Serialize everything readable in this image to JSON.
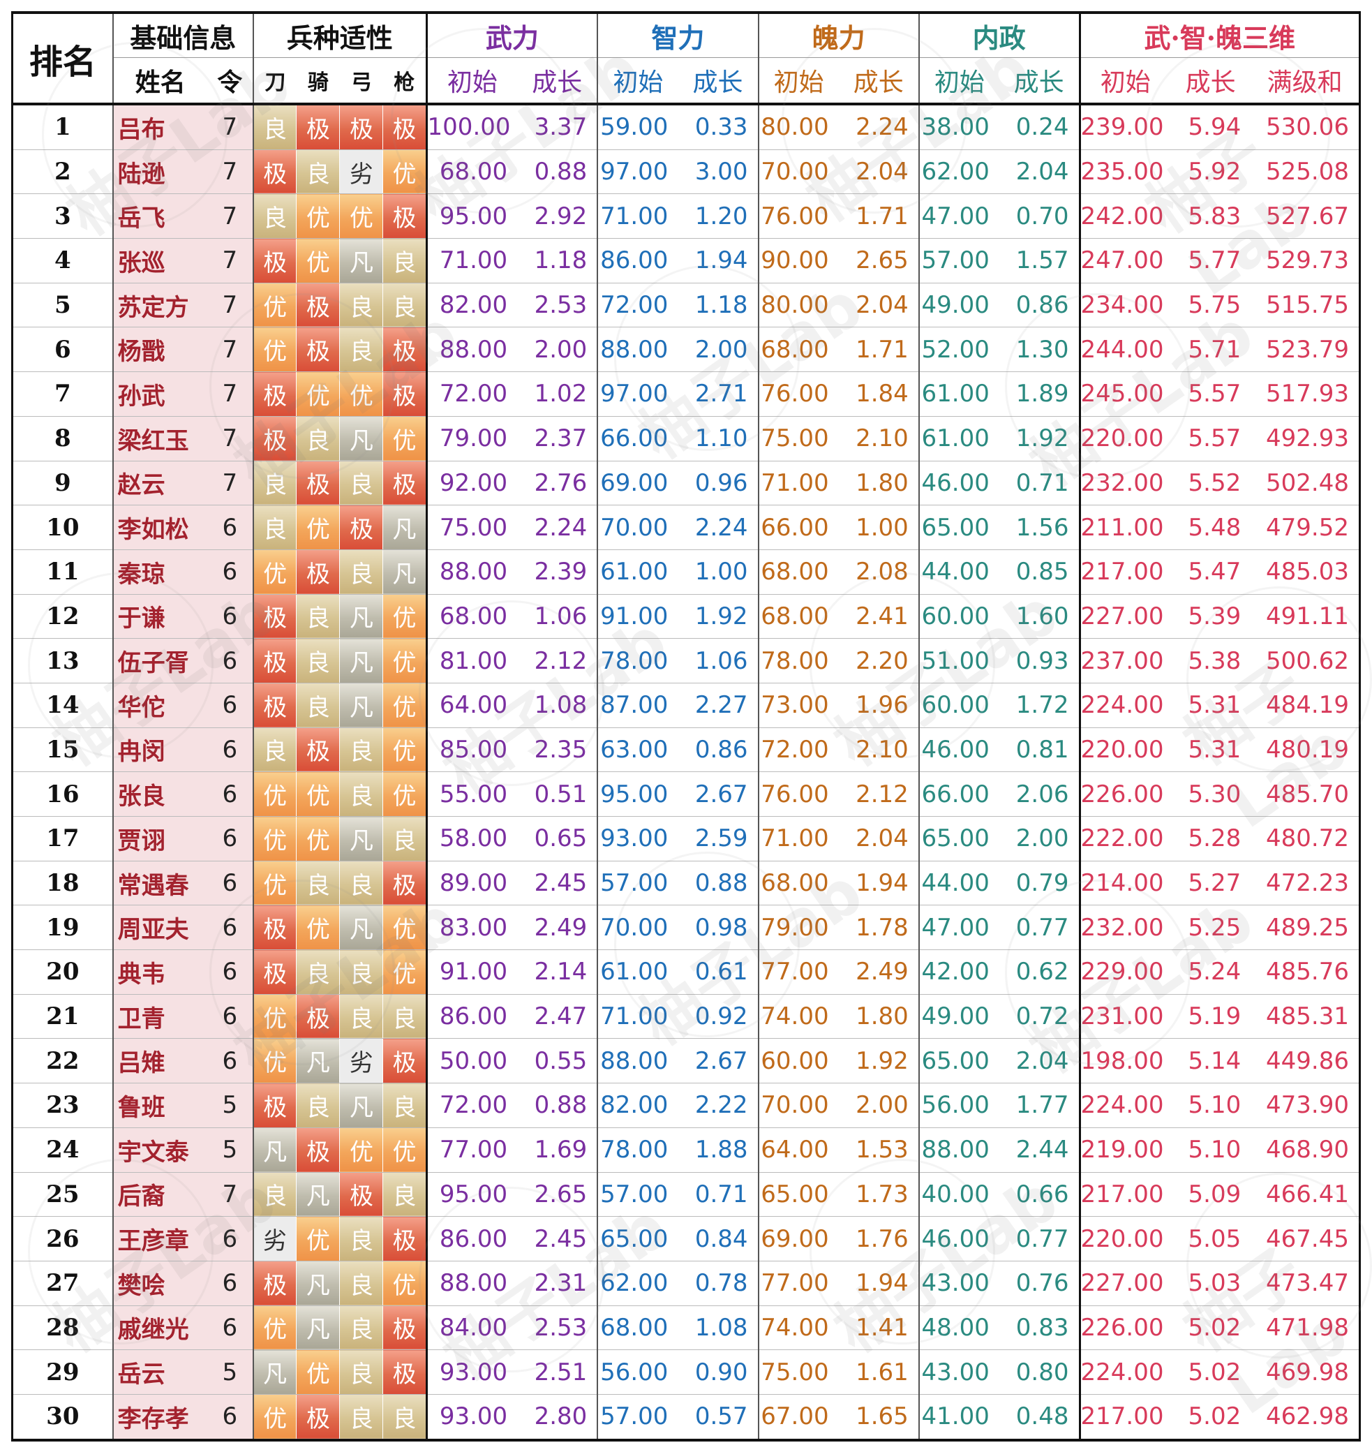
{
  "header": {
    "rank": "排名",
    "basic": "基础信息",
    "troop": "兵种适性",
    "wuli": "武力",
    "zhili": "智力",
    "poli": "魄力",
    "neizheng": "内政",
    "sanwei": "武·智·魄三维",
    "name": "姓名",
    "ling": "令",
    "dao": "刀",
    "qi": "骑",
    "gong": "弓",
    "qiang": "枪",
    "init": "初始",
    "grow": "成长",
    "maxsum": "满级和"
  },
  "watermark": "柚子Lab",
  "rows": [
    {
      "rank": "1",
      "name": "吕布",
      "ling": "7",
      "apt": [
        "良",
        "极",
        "极",
        "极"
      ],
      "w": [
        "100.00",
        "3.37"
      ],
      "z": [
        "59.00",
        "0.33"
      ],
      "p": [
        "80.00",
        "2.24"
      ],
      "n": [
        "38.00",
        "0.24"
      ],
      "s": [
        "239.00",
        "5.94",
        "530.06"
      ]
    },
    {
      "rank": "2",
      "name": "陆逊",
      "ling": "7",
      "apt": [
        "极",
        "良",
        "劣",
        "优"
      ],
      "w": [
        "68.00",
        "0.88"
      ],
      "z": [
        "97.00",
        "3.00"
      ],
      "p": [
        "70.00",
        "2.04"
      ],
      "n": [
        "62.00",
        "2.04"
      ],
      "s": [
        "235.00",
        "5.92",
        "525.08"
      ]
    },
    {
      "rank": "3",
      "name": "岳飞",
      "ling": "7",
      "apt": [
        "良",
        "优",
        "优",
        "极"
      ],
      "w": [
        "95.00",
        "2.92"
      ],
      "z": [
        "71.00",
        "1.20"
      ],
      "p": [
        "76.00",
        "1.71"
      ],
      "n": [
        "47.00",
        "0.70"
      ],
      "s": [
        "242.00",
        "5.83",
        "527.67"
      ]
    },
    {
      "rank": "4",
      "name": "张巡",
      "ling": "7",
      "apt": [
        "极",
        "优",
        "凡",
        "良"
      ],
      "w": [
        "71.00",
        "1.18"
      ],
      "z": [
        "86.00",
        "1.94"
      ],
      "p": [
        "90.00",
        "2.65"
      ],
      "n": [
        "57.00",
        "1.57"
      ],
      "s": [
        "247.00",
        "5.77",
        "529.73"
      ]
    },
    {
      "rank": "5",
      "name": "苏定方",
      "ling": "7",
      "apt": [
        "优",
        "极",
        "良",
        "良"
      ],
      "w": [
        "82.00",
        "2.53"
      ],
      "z": [
        "72.00",
        "1.18"
      ],
      "p": [
        "80.00",
        "2.04"
      ],
      "n": [
        "49.00",
        "0.86"
      ],
      "s": [
        "234.00",
        "5.75",
        "515.75"
      ]
    },
    {
      "rank": "6",
      "name": "杨戬",
      "ling": "7",
      "apt": [
        "优",
        "极",
        "良",
        "极"
      ],
      "w": [
        "88.00",
        "2.00"
      ],
      "z": [
        "88.00",
        "2.00"
      ],
      "p": [
        "68.00",
        "1.71"
      ],
      "n": [
        "52.00",
        "1.30"
      ],
      "s": [
        "244.00",
        "5.71",
        "523.79"
      ]
    },
    {
      "rank": "7",
      "name": "孙武",
      "ling": "7",
      "apt": [
        "极",
        "优",
        "优",
        "极"
      ],
      "w": [
        "72.00",
        "1.02"
      ],
      "z": [
        "97.00",
        "2.71"
      ],
      "p": [
        "76.00",
        "1.84"
      ],
      "n": [
        "61.00",
        "1.89"
      ],
      "s": [
        "245.00",
        "5.57",
        "517.93"
      ]
    },
    {
      "rank": "8",
      "name": "梁红玉",
      "ling": "7",
      "apt": [
        "极",
        "良",
        "凡",
        "优"
      ],
      "w": [
        "79.00",
        "2.37"
      ],
      "z": [
        "66.00",
        "1.10"
      ],
      "p": [
        "75.00",
        "2.10"
      ],
      "n": [
        "61.00",
        "1.92"
      ],
      "s": [
        "220.00",
        "5.57",
        "492.93"
      ]
    },
    {
      "rank": "9",
      "name": "赵云",
      "ling": "7",
      "apt": [
        "良",
        "极",
        "良",
        "极"
      ],
      "w": [
        "92.00",
        "2.76"
      ],
      "z": [
        "69.00",
        "0.96"
      ],
      "p": [
        "71.00",
        "1.80"
      ],
      "n": [
        "46.00",
        "0.71"
      ],
      "s": [
        "232.00",
        "5.52",
        "502.48"
      ]
    },
    {
      "rank": "10",
      "name": "李如松",
      "ling": "6",
      "apt": [
        "良",
        "优",
        "极",
        "凡"
      ],
      "w": [
        "75.00",
        "2.24"
      ],
      "z": [
        "70.00",
        "2.24"
      ],
      "p": [
        "66.00",
        "1.00"
      ],
      "n": [
        "65.00",
        "1.56"
      ],
      "s": [
        "211.00",
        "5.48",
        "479.52"
      ]
    },
    {
      "rank": "11",
      "name": "秦琼",
      "ling": "6",
      "apt": [
        "优",
        "极",
        "良",
        "凡"
      ],
      "w": [
        "88.00",
        "2.39"
      ],
      "z": [
        "61.00",
        "1.00"
      ],
      "p": [
        "68.00",
        "2.08"
      ],
      "n": [
        "44.00",
        "0.85"
      ],
      "s": [
        "217.00",
        "5.47",
        "485.03"
      ]
    },
    {
      "rank": "12",
      "name": "于谦",
      "ling": "6",
      "apt": [
        "极",
        "良",
        "凡",
        "优"
      ],
      "w": [
        "68.00",
        "1.06"
      ],
      "z": [
        "91.00",
        "1.92"
      ],
      "p": [
        "68.00",
        "2.41"
      ],
      "n": [
        "60.00",
        "1.60"
      ],
      "s": [
        "227.00",
        "5.39",
        "491.11"
      ]
    },
    {
      "rank": "13",
      "name": "伍子胥",
      "ling": "6",
      "apt": [
        "极",
        "良",
        "凡",
        "优"
      ],
      "w": [
        "81.00",
        "2.12"
      ],
      "z": [
        "78.00",
        "1.06"
      ],
      "p": [
        "78.00",
        "2.20"
      ],
      "n": [
        "51.00",
        "0.93"
      ],
      "s": [
        "237.00",
        "5.38",
        "500.62"
      ]
    },
    {
      "rank": "14",
      "name": "华佗",
      "ling": "6",
      "apt": [
        "极",
        "良",
        "凡",
        "优"
      ],
      "w": [
        "64.00",
        "1.08"
      ],
      "z": [
        "87.00",
        "2.27"
      ],
      "p": [
        "73.00",
        "1.96"
      ],
      "n": [
        "60.00",
        "1.72"
      ],
      "s": [
        "224.00",
        "5.31",
        "484.19"
      ]
    },
    {
      "rank": "15",
      "name": "冉闵",
      "ling": "6",
      "apt": [
        "良",
        "极",
        "良",
        "优"
      ],
      "w": [
        "85.00",
        "2.35"
      ],
      "z": [
        "63.00",
        "0.86"
      ],
      "p": [
        "72.00",
        "2.10"
      ],
      "n": [
        "46.00",
        "0.81"
      ],
      "s": [
        "220.00",
        "5.31",
        "480.19"
      ]
    },
    {
      "rank": "16",
      "name": "张良",
      "ling": "6",
      "apt": [
        "优",
        "优",
        "良",
        "优"
      ],
      "w": [
        "55.00",
        "0.51"
      ],
      "z": [
        "95.00",
        "2.67"
      ],
      "p": [
        "76.00",
        "2.12"
      ],
      "n": [
        "66.00",
        "2.06"
      ],
      "s": [
        "226.00",
        "5.30",
        "485.70"
      ]
    },
    {
      "rank": "17",
      "name": "贾诩",
      "ling": "6",
      "apt": [
        "优",
        "优",
        "凡",
        "良"
      ],
      "w": [
        "58.00",
        "0.65"
      ],
      "z": [
        "93.00",
        "2.59"
      ],
      "p": [
        "71.00",
        "2.04"
      ],
      "n": [
        "65.00",
        "2.00"
      ],
      "s": [
        "222.00",
        "5.28",
        "480.72"
      ]
    },
    {
      "rank": "18",
      "name": "常遇春",
      "ling": "6",
      "apt": [
        "优",
        "良",
        "良",
        "极"
      ],
      "w": [
        "89.00",
        "2.45"
      ],
      "z": [
        "57.00",
        "0.88"
      ],
      "p": [
        "68.00",
        "1.94"
      ],
      "n": [
        "44.00",
        "0.79"
      ],
      "s": [
        "214.00",
        "5.27",
        "472.23"
      ]
    },
    {
      "rank": "19",
      "name": "周亚夫",
      "ling": "6",
      "apt": [
        "极",
        "优",
        "凡",
        "优"
      ],
      "w": [
        "83.00",
        "2.49"
      ],
      "z": [
        "70.00",
        "0.98"
      ],
      "p": [
        "79.00",
        "1.78"
      ],
      "n": [
        "47.00",
        "0.77"
      ],
      "s": [
        "232.00",
        "5.25",
        "489.25"
      ]
    },
    {
      "rank": "20",
      "name": "典韦",
      "ling": "6",
      "apt": [
        "极",
        "良",
        "良",
        "优"
      ],
      "w": [
        "91.00",
        "2.14"
      ],
      "z": [
        "61.00",
        "0.61"
      ],
      "p": [
        "77.00",
        "2.49"
      ],
      "n": [
        "42.00",
        "0.62"
      ],
      "s": [
        "229.00",
        "5.24",
        "485.76"
      ]
    },
    {
      "rank": "21",
      "name": "卫青",
      "ling": "6",
      "apt": [
        "优",
        "极",
        "良",
        "良"
      ],
      "w": [
        "86.00",
        "2.47"
      ],
      "z": [
        "71.00",
        "0.92"
      ],
      "p": [
        "74.00",
        "1.80"
      ],
      "n": [
        "49.00",
        "0.72"
      ],
      "s": [
        "231.00",
        "5.19",
        "485.31"
      ]
    },
    {
      "rank": "22",
      "name": "吕雉",
      "ling": "6",
      "apt": [
        "优",
        "凡",
        "劣",
        "极"
      ],
      "w": [
        "50.00",
        "0.55"
      ],
      "z": [
        "88.00",
        "2.67"
      ],
      "p": [
        "60.00",
        "1.92"
      ],
      "n": [
        "65.00",
        "2.04"
      ],
      "s": [
        "198.00",
        "5.14",
        "449.86"
      ]
    },
    {
      "rank": "23",
      "name": "鲁班",
      "ling": "5",
      "apt": [
        "极",
        "良",
        "凡",
        "良"
      ],
      "w": [
        "72.00",
        "0.88"
      ],
      "z": [
        "82.00",
        "2.22"
      ],
      "p": [
        "70.00",
        "2.00"
      ],
      "n": [
        "56.00",
        "1.77"
      ],
      "s": [
        "224.00",
        "5.10",
        "473.90"
      ]
    },
    {
      "rank": "24",
      "name": "宇文泰",
      "ling": "5",
      "apt": [
        "凡",
        "极",
        "优",
        "优"
      ],
      "w": [
        "77.00",
        "1.69"
      ],
      "z": [
        "78.00",
        "1.88"
      ],
      "p": [
        "64.00",
        "1.53"
      ],
      "n": [
        "88.00",
        "2.44"
      ],
      "s": [
        "219.00",
        "5.10",
        "468.90"
      ]
    },
    {
      "rank": "25",
      "name": "后裔",
      "ling": "7",
      "apt": [
        "良",
        "凡",
        "极",
        "良"
      ],
      "w": [
        "95.00",
        "2.65"
      ],
      "z": [
        "57.00",
        "0.71"
      ],
      "p": [
        "65.00",
        "1.73"
      ],
      "n": [
        "40.00",
        "0.66"
      ],
      "s": [
        "217.00",
        "5.09",
        "466.41"
      ]
    },
    {
      "rank": "26",
      "name": "王彦章",
      "ling": "6",
      "apt": [
        "劣",
        "优",
        "良",
        "极"
      ],
      "w": [
        "86.00",
        "2.45"
      ],
      "z": [
        "65.00",
        "0.84"
      ],
      "p": [
        "69.00",
        "1.76"
      ],
      "n": [
        "46.00",
        "0.77"
      ],
      "s": [
        "220.00",
        "5.05",
        "467.45"
      ]
    },
    {
      "rank": "27",
      "name": "樊哙",
      "ling": "6",
      "apt": [
        "极",
        "凡",
        "良",
        "优"
      ],
      "w": [
        "88.00",
        "2.31"
      ],
      "z": [
        "62.00",
        "0.78"
      ],
      "p": [
        "77.00",
        "1.94"
      ],
      "n": [
        "43.00",
        "0.76"
      ],
      "s": [
        "227.00",
        "5.03",
        "473.47"
      ]
    },
    {
      "rank": "28",
      "name": "戚继光",
      "ling": "6",
      "apt": [
        "优",
        "凡",
        "良",
        "极"
      ],
      "w": [
        "84.00",
        "2.53"
      ],
      "z": [
        "68.00",
        "1.08"
      ],
      "p": [
        "74.00",
        "1.41"
      ],
      "n": [
        "48.00",
        "0.83"
      ],
      "s": [
        "226.00",
        "5.02",
        "471.98"
      ]
    },
    {
      "rank": "29",
      "name": "岳云",
      "ling": "5",
      "apt": [
        "凡",
        "优",
        "良",
        "极"
      ],
      "w": [
        "93.00",
        "2.51"
      ],
      "z": [
        "56.00",
        "0.90"
      ],
      "p": [
        "75.00",
        "1.61"
      ],
      "n": [
        "43.00",
        "0.80"
      ],
      "s": [
        "224.00",
        "5.02",
        "469.98"
      ]
    },
    {
      "rank": "30",
      "name": "李存孝",
      "ling": "6",
      "apt": [
        "优",
        "极",
        "良",
        "良"
      ],
      "w": [
        "93.00",
        "2.80"
      ],
      "z": [
        "57.00",
        "0.57"
      ],
      "p": [
        "67.00",
        "1.65"
      ],
      "n": [
        "41.00",
        "0.48"
      ],
      "s": [
        "217.00",
        "5.02",
        "462.98"
      ]
    }
  ]
}
